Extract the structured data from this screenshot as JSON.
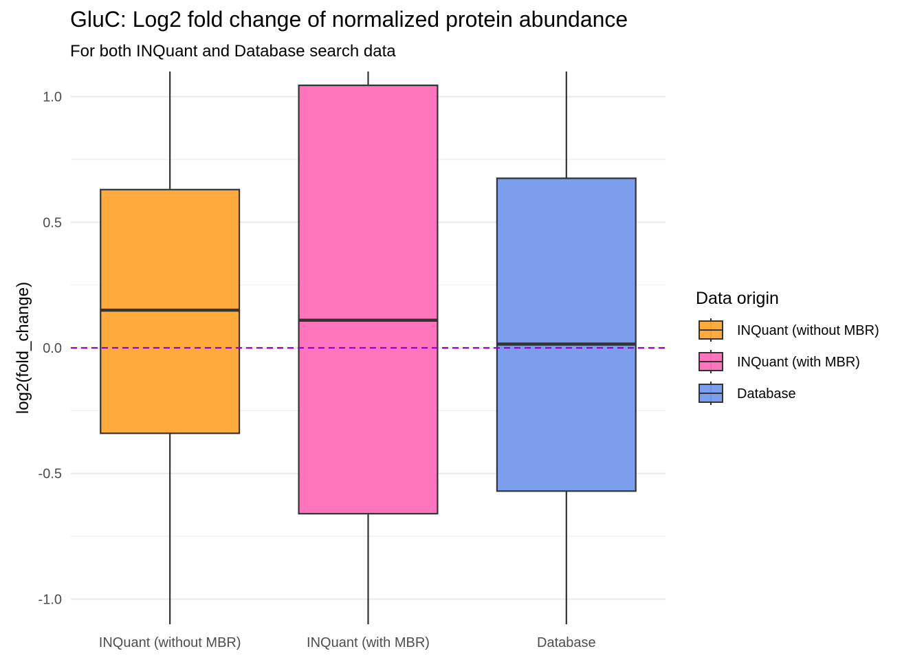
{
  "chart_data": {
    "type": "box",
    "title": "GluC: Log2 fold change of normalized protein abundance",
    "subtitle": "For both INQuant and Database search data",
    "xlabel": "",
    "ylabel": "log2(fold_change)",
    "ylim": [
      -1.1,
      1.1
    ],
    "y_ticks": [
      -1.0,
      -0.5,
      0.0,
      0.5,
      1.0
    ],
    "y_tick_labels": [
      "-1.0",
      "-0.5",
      "0.0",
      "0.5",
      "1.0"
    ],
    "grid": true,
    "reference_line": {
      "y": 0.0,
      "style": "dashed",
      "color": "#9400D3"
    },
    "categories": [
      "INQuant (without MBR)",
      "INQuant (with MBR)",
      "Database"
    ],
    "series": [
      {
        "category": "INQuant (without MBR)",
        "q1": -0.34,
        "median": 0.15,
        "q3": 0.63,
        "whisker_low": -1.1,
        "whisker_high": 1.1,
        "color": "#FFA533"
      },
      {
        "category": "INQuant (with MBR)",
        "q1": -0.66,
        "median": 0.11,
        "q3": 1.045,
        "whisker_low": -1.1,
        "whisker_high": 1.1,
        "color": "#FF6EB9"
      },
      {
        "category": "Database",
        "q1": -0.57,
        "median": 0.015,
        "q3": 0.675,
        "whisker_low": -1.1,
        "whisker_high": 1.1,
        "color": "#7499EC"
      }
    ],
    "legend": {
      "title": "Data origin",
      "placement": "right",
      "entries": [
        "INQuant (without MBR)",
        "INQuant (with MBR)",
        "Database"
      ]
    }
  }
}
